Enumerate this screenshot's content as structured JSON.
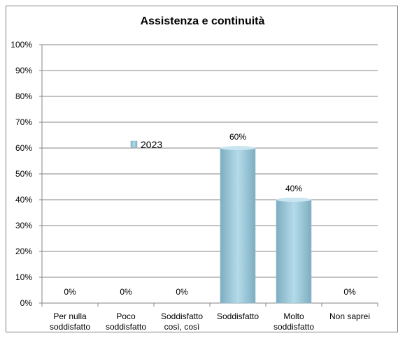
{
  "chart_data": {
    "type": "bar",
    "title": "Assistenza e continuità",
    "categories": [
      [
        "Per nulla",
        "soddisfatto"
      ],
      [
        "Poco",
        "soddisfatto"
      ],
      [
        "Soddisfatto",
        "così, così"
      ],
      [
        "Soddisfatto"
      ],
      [
        "Molto",
        "soddisfatto"
      ],
      [
        "Non saprei"
      ]
    ],
    "series": [
      {
        "name": "2023",
        "values": [
          0,
          0,
          0,
          60,
          40,
          0
        ],
        "labels": [
          "0%",
          "0%",
          "0%",
          "60%",
          "40%",
          "0%"
        ]
      }
    ],
    "ylim": [
      0,
      100
    ],
    "yticks": [
      0,
      10,
      20,
      30,
      40,
      50,
      60,
      70,
      80,
      90,
      100
    ],
    "ytick_labels": [
      "0%",
      "10%",
      "20%",
      "30%",
      "40%",
      "50%",
      "60%",
      "70%",
      "80%",
      "90%",
      "100%"
    ],
    "grid": true,
    "legend_position": "inside-left",
    "colors": {
      "bar": "#a9d2e2",
      "bar_top": "#c9e6f0",
      "grid": "#868686",
      "axis": "#868686",
      "text": "#000000"
    }
  }
}
